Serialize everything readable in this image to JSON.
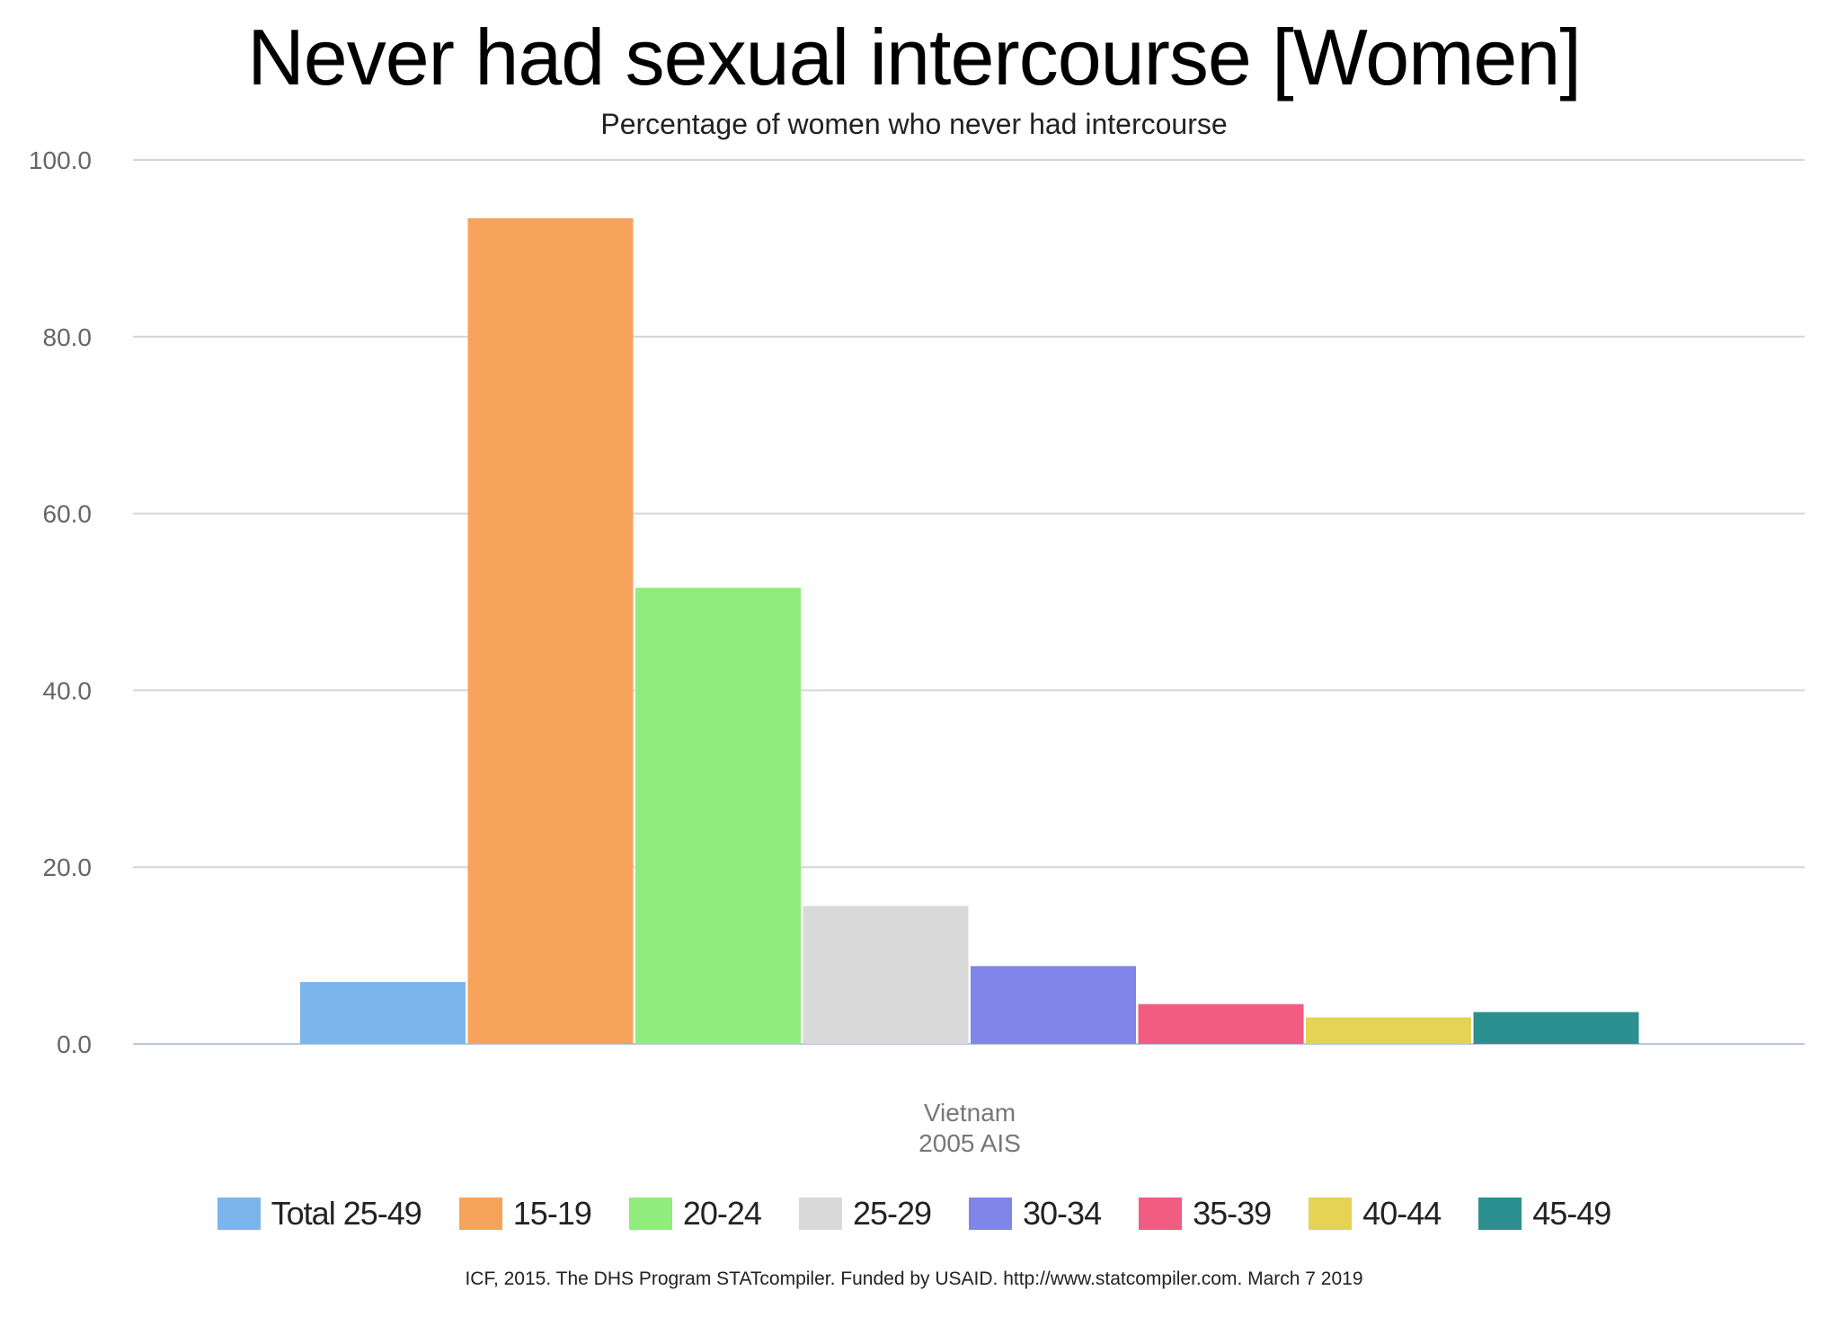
{
  "chart_data": {
    "type": "bar",
    "title": "Never had sexual intercourse [Women]",
    "subtitle": "Percentage of women who never had intercourse",
    "categories": [
      "Vietnam\n2005 AIS"
    ],
    "category_lines": [
      "Vietnam",
      "2005 AIS"
    ],
    "series": [
      {
        "name": "Total 25-49",
        "values": [
          7.0
        ],
        "color": "#7cb5ec"
      },
      {
        "name": "15-19",
        "values": [
          93.4
        ],
        "color": "#f7a35c"
      },
      {
        "name": "20-24",
        "values": [
          51.6
        ],
        "color": "#90ed7d"
      },
      {
        "name": "25-29",
        "values": [
          15.6
        ],
        "color": "#d9d9d9"
      },
      {
        "name": "30-34",
        "values": [
          8.8
        ],
        "color": "#8085e9"
      },
      {
        "name": "35-39",
        "values": [
          4.5
        ],
        "color": "#f15c80"
      },
      {
        "name": "40-44",
        "values": [
          3.0
        ],
        "color": "#e4d354"
      },
      {
        "name": "45-49",
        "values": [
          3.6
        ],
        "color": "#2b908f"
      }
    ],
    "yticks": [
      "0.0",
      "20.0",
      "40.0",
      "60.0",
      "80.0",
      "100.0"
    ],
    "ylim": [
      0,
      100
    ],
    "grid": true,
    "legend_position": "bottom",
    "xlabel": "",
    "ylabel": ""
  },
  "footer": "ICF, 2015. The DHS Program STATcompiler. Funded by USAID. http://www.statcompiler.com. March 7 2019"
}
